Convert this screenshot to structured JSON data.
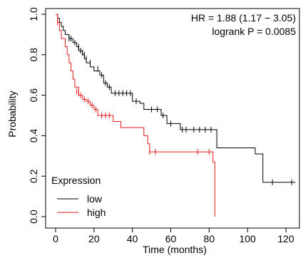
{
  "chart_data": {
    "type": "line",
    "title": "",
    "xlabel": "Time (months)",
    "ylabel": "Probability",
    "xlim": [
      0,
      125
    ],
    "ylim": [
      0,
      1
    ],
    "x_ticks": [
      "0",
      "20",
      "40",
      "60",
      "80",
      "100",
      "120"
    ],
    "y_ticks": [
      "0.0",
      "0.2",
      "0.4",
      "0.6",
      "0.8",
      "1.0"
    ],
    "annotations": {
      "hr": "HR = 1.88 (1.17 − 3.05)",
      "logrank": "logrank P = 0.0085"
    },
    "legend": {
      "title": "Expression",
      "position": "bottom-left",
      "entries": [
        "low",
        "high"
      ]
    },
    "series": [
      {
        "name": "low",
        "color": "#000000",
        "steps": [
          [
            0,
            1.0
          ],
          [
            1,
            0.98
          ],
          [
            2,
            0.96
          ],
          [
            3,
            0.94
          ],
          [
            4,
            0.92
          ],
          [
            5,
            0.9
          ],
          [
            7,
            0.88
          ],
          [
            9,
            0.86
          ],
          [
            11,
            0.84
          ],
          [
            12,
            0.82
          ],
          [
            14,
            0.8
          ],
          [
            15,
            0.78
          ],
          [
            16,
            0.76
          ],
          [
            18,
            0.74
          ],
          [
            20,
            0.72
          ],
          [
            23,
            0.7
          ],
          [
            25,
            0.66
          ],
          [
            27,
            0.64
          ],
          [
            29,
            0.61
          ],
          [
            40,
            0.57
          ],
          [
            44,
            0.56
          ],
          [
            46,
            0.53
          ],
          [
            55,
            0.5
          ],
          [
            58,
            0.46
          ],
          [
            65,
            0.43
          ],
          [
            84,
            0.34
          ],
          [
            104,
            0.31
          ],
          [
            108,
            0.17
          ],
          [
            125,
            0.17
          ]
        ],
        "censors": [
          [
            7,
            0.88
          ],
          [
            8,
            0.88
          ],
          [
            10,
            0.86
          ],
          [
            12,
            0.84
          ],
          [
            13,
            0.82
          ],
          [
            14,
            0.81
          ],
          [
            15,
            0.8
          ],
          [
            16,
            0.78
          ],
          [
            18,
            0.76
          ],
          [
            22,
            0.73
          ],
          [
            24,
            0.7
          ],
          [
            26,
            0.66
          ],
          [
            28,
            0.64
          ],
          [
            31,
            0.61
          ],
          [
            33,
            0.61
          ],
          [
            35,
            0.61
          ],
          [
            37,
            0.61
          ],
          [
            39,
            0.61
          ],
          [
            42,
            0.57
          ],
          [
            50,
            0.53
          ],
          [
            53,
            0.53
          ],
          [
            56,
            0.5
          ],
          [
            60,
            0.46
          ],
          [
            66,
            0.43
          ],
          [
            68,
            0.43
          ],
          [
            72,
            0.43
          ],
          [
            75,
            0.43
          ],
          [
            78,
            0.43
          ],
          [
            81,
            0.43
          ],
          [
            113,
            0.17
          ],
          [
            123,
            0.17
          ]
        ]
      },
      {
        "name": "high",
        "color": "#e41a1c",
        "steps": [
          [
            0,
            1.0
          ],
          [
            1,
            0.96
          ],
          [
            2,
            0.92
          ],
          [
            3,
            0.88
          ],
          [
            5,
            0.84
          ],
          [
            6,
            0.8
          ],
          [
            7,
            0.76
          ],
          [
            8,
            0.72
          ],
          [
            9,
            0.68
          ],
          [
            10,
            0.64
          ],
          [
            12,
            0.6
          ],
          [
            14,
            0.58
          ],
          [
            16,
            0.57
          ],
          [
            18,
            0.55
          ],
          [
            20,
            0.53
          ],
          [
            22,
            0.5
          ],
          [
            30,
            0.47
          ],
          [
            34,
            0.44
          ],
          [
            46,
            0.4
          ],
          [
            48,
            0.36
          ],
          [
            49,
            0.32
          ],
          [
            82,
            0.27
          ],
          [
            83,
            0.0
          ]
        ],
        "censors": [
          [
            1,
            0.96
          ],
          [
            11,
            0.62
          ],
          [
            12,
            0.61
          ],
          [
            13,
            0.6
          ],
          [
            15,
            0.58
          ],
          [
            17,
            0.57
          ],
          [
            19,
            0.55
          ],
          [
            21,
            0.53
          ],
          [
            24,
            0.5
          ],
          [
            26,
            0.5
          ],
          [
            28,
            0.5
          ],
          [
            49,
            0.32
          ],
          [
            52,
            0.32
          ],
          [
            74,
            0.32
          ],
          [
            80,
            0.32
          ]
        ]
      }
    ]
  }
}
